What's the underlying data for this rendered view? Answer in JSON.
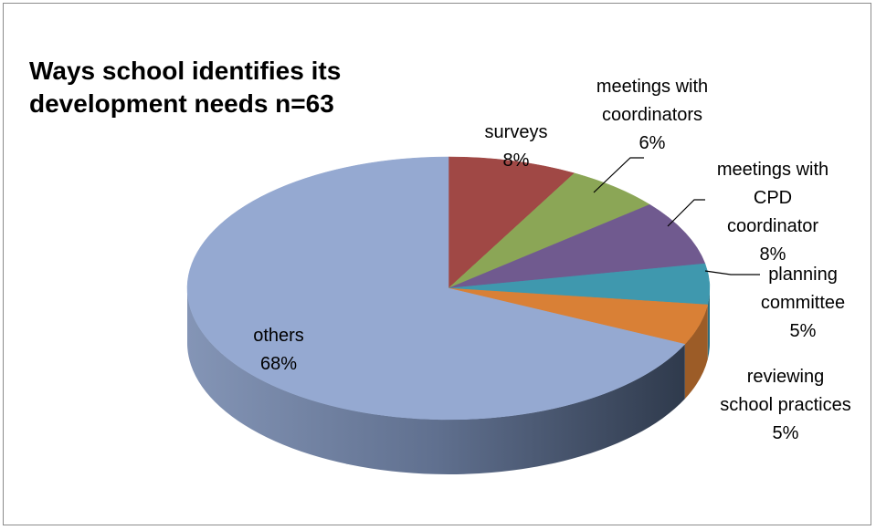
{
  "chart_data": {
    "type": "pie",
    "title": "Ways school identifies its development needs n=63",
    "style": "3d-exploded-none",
    "slices": [
      {
        "label": "surveys",
        "percent_label": "8%",
        "value": 8,
        "color": "#A04845"
      },
      {
        "label": "meetings  with coordinators",
        "percent_label": "6%",
        "value": 6,
        "color": "#8BA656"
      },
      {
        "label": "meetings with CPD coordinator",
        "percent_label": "8%",
        "value": 8,
        "color": "#705A8F"
      },
      {
        "label": "planning committee",
        "percent_label": "5%",
        "value": 5,
        "color": "#3F98AE"
      },
      {
        "label": "reviewing school practices",
        "percent_label": "5%",
        "value": 5,
        "color": "#D98036"
      },
      {
        "label": "others",
        "percent_label": "68%",
        "value": 68,
        "color": "#95A9D1"
      }
    ]
  }
}
